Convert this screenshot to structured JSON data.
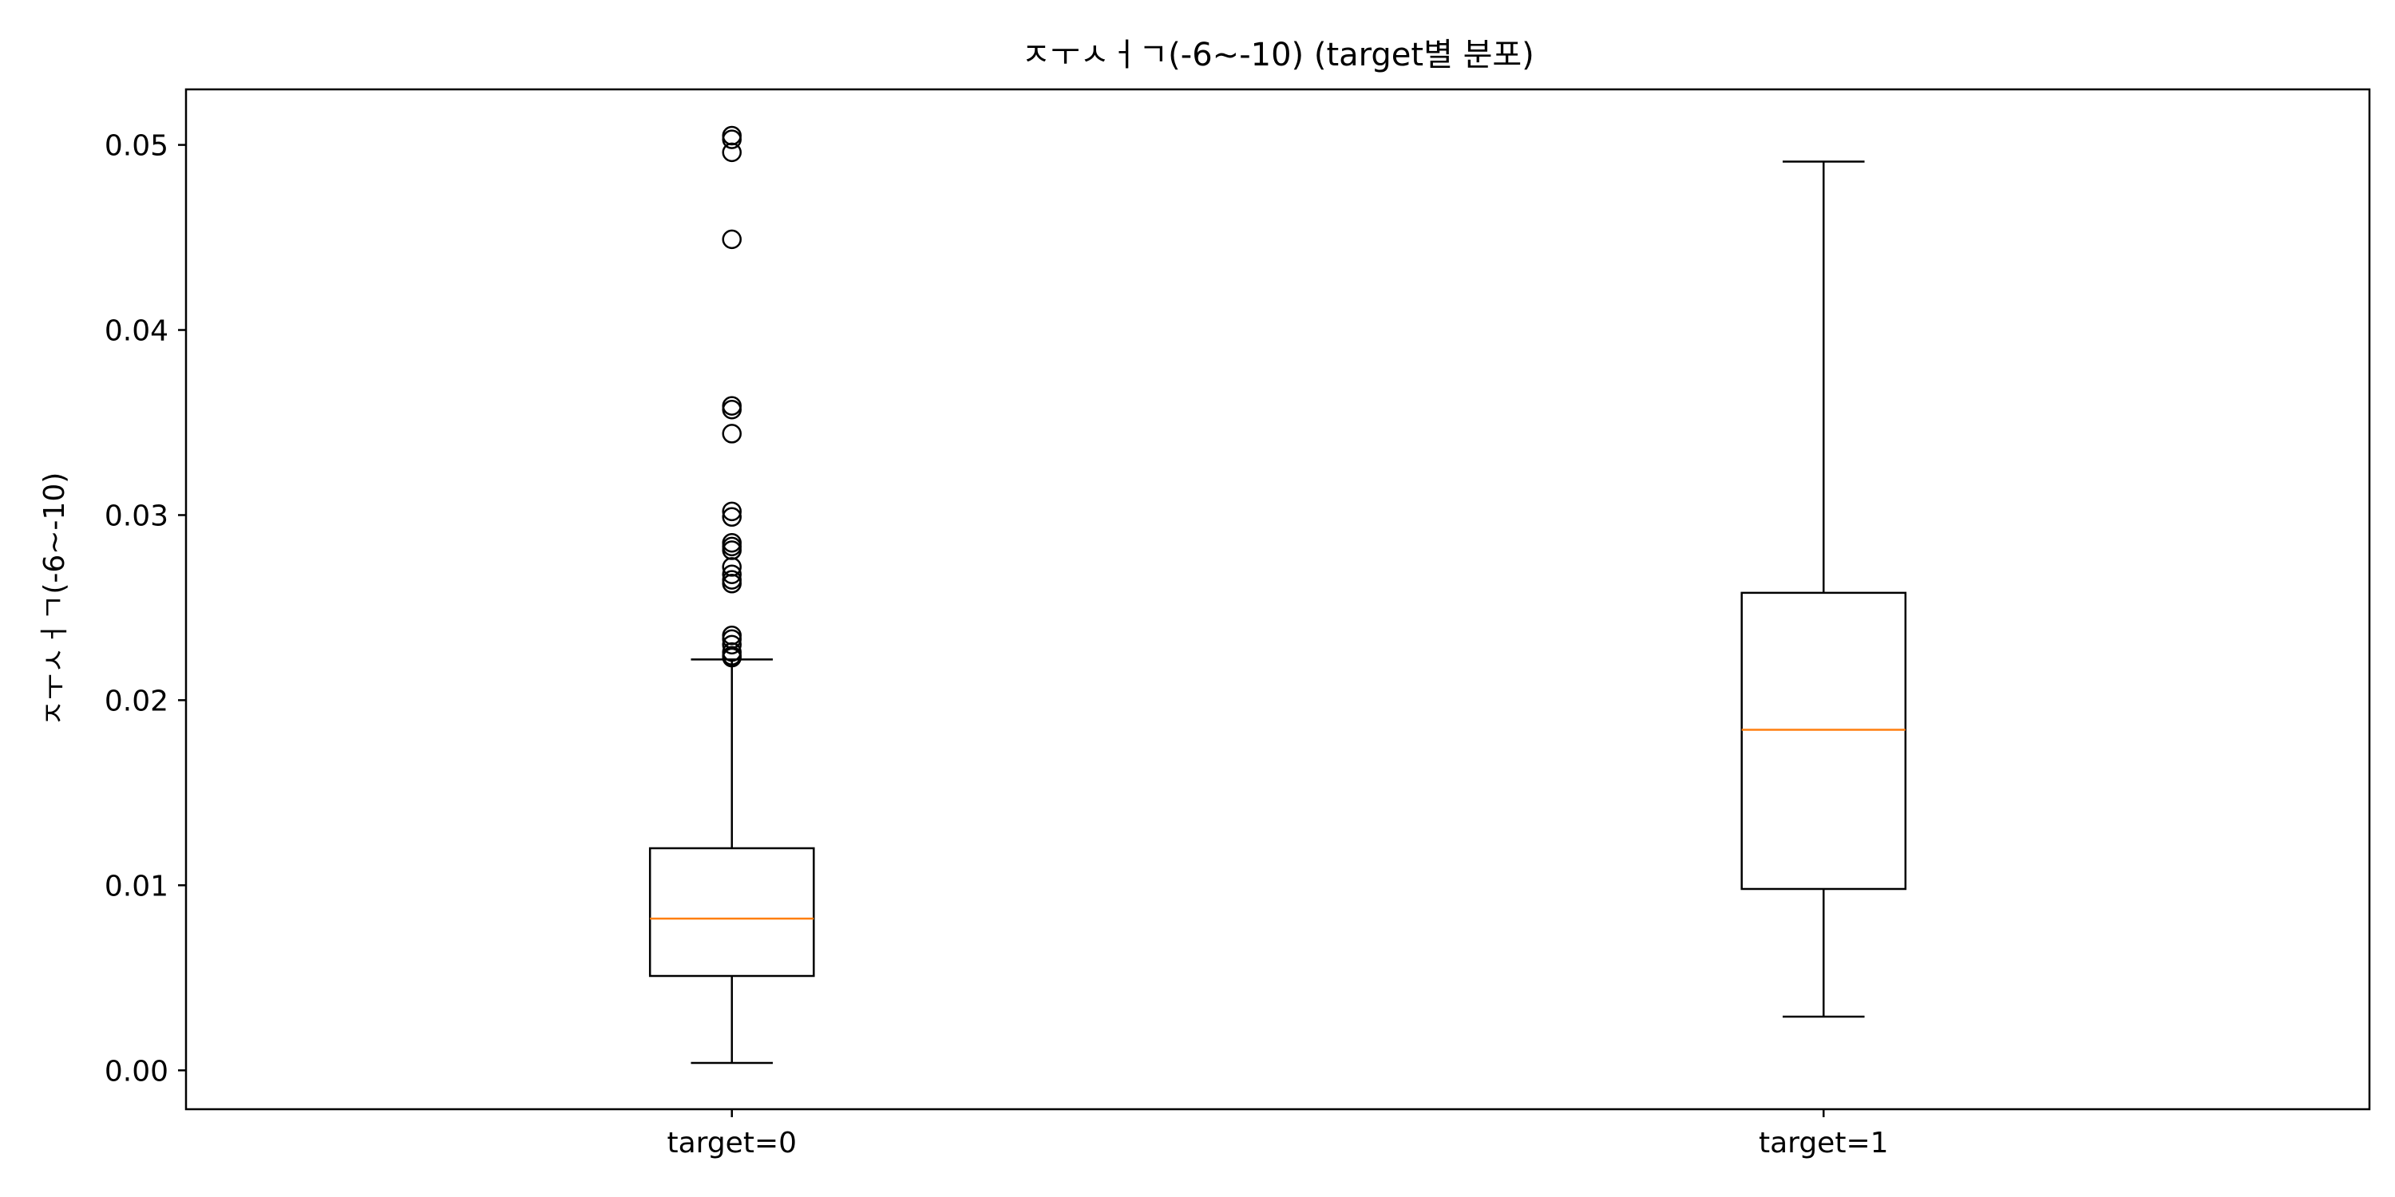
{
  "chart_data": {
    "type": "box",
    "title": "ㅈㅜㅅㅓㄱ(-6~-10) (target별 분포)",
    "xlabel": "",
    "ylabel": "ㅈㅜㅅㅓㄱ(-6~-10)",
    "ylim": [
      -0.0021,
      0.053
    ],
    "yticks": [
      "0.00",
      "0.01",
      "0.02",
      "0.03",
      "0.04",
      "0.05"
    ],
    "ytick_values": [
      0.0,
      0.01,
      0.02,
      0.03,
      0.04,
      0.05
    ],
    "categories": [
      "target=0",
      "target=1"
    ],
    "boxes": [
      {
        "label": "target=0",
        "whisker_low": 0.0004,
        "q1": 0.0051,
        "median": 0.0082,
        "q3": 0.012,
        "whisker_high": 0.0222,
        "outliers": [
          0.0505,
          0.0503,
          0.0496,
          0.0449,
          0.0359,
          0.0357,
          0.0344,
          0.0302,
          0.0299,
          0.0285,
          0.0283,
          0.0281,
          0.0272,
          0.0268,
          0.0265,
          0.0263,
          0.0235,
          0.0233,
          0.023,
          0.0226,
          0.0224,
          0.0223
        ]
      },
      {
        "label": "target=1",
        "whisker_low": 0.0029,
        "q1": 0.0098,
        "median": 0.0184,
        "q3": 0.0258,
        "whisker_high": 0.0491,
        "outliers": []
      }
    ],
    "grid": false,
    "colors": {
      "box": "#000000",
      "median": "#ff7f0e",
      "outlier_edge": "#000000"
    }
  }
}
